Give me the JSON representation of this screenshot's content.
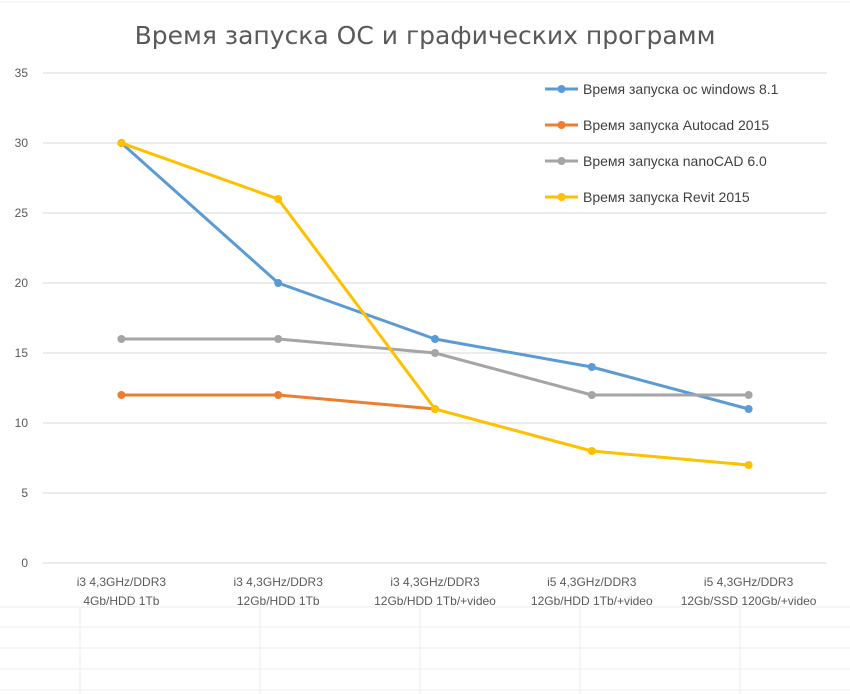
{
  "chart_data": {
    "type": "line",
    "title": "Время запуска ОС и графических программ",
    "categories": [
      [
        "i3 4,3GHz/DDR3",
        "4Gb/HDD 1Tb"
      ],
      [
        "i3 4,3GHz/DDR3",
        "12Gb/HDD 1Tb"
      ],
      [
        "i3 4,3GHz/DDR3",
        "12Gb/HDD 1Tb/+video"
      ],
      [
        "i5 4,3GHz/DDR3",
        "12Gb/HDD 1Tb/+video"
      ],
      [
        "i5 4,3GHz/DDR3",
        "12Gb/SSD 120Gb/+video"
      ]
    ],
    "yticks": [
      "0",
      "5",
      "10",
      "15",
      "20",
      "25",
      "30",
      "35"
    ],
    "ylim": [
      0,
      35
    ],
    "grid": true,
    "legend_position": "top-right",
    "series": [
      {
        "name": "Время запуска ос windows 8.1",
        "color": "#5b9bd5",
        "values": [
          30,
          20,
          16,
          14,
          11
        ]
      },
      {
        "name": "Время запуска Autocad 2015",
        "color": "#ed7d31",
        "values": [
          12,
          12,
          11,
          null,
          null
        ]
      },
      {
        "name": "Время запуска nanoCAD 6.0",
        "color": "#a5a5a5",
        "values": [
          16,
          16,
          15,
          12,
          12
        ]
      },
      {
        "name": "Время запуска Revit 2015",
        "color": "#ffc000",
        "values": [
          30,
          26,
          11,
          8,
          7
        ]
      }
    ]
  }
}
